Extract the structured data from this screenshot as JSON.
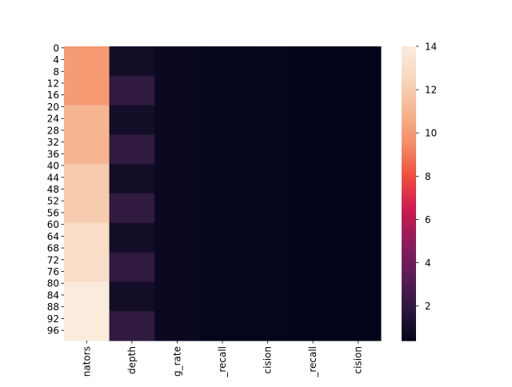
{
  "chart_data": {
    "type": "heatmap",
    "title": "",
    "xlabel": "",
    "ylabel": "",
    "columns": [
      "nators",
      "depth",
      "g_rate",
      "_recall",
      "cision",
      "_recall",
      "cision"
    ],
    "row_tick_labels": [
      "0",
      "4",
      "8",
      "12",
      "16",
      "20",
      "24",
      "28",
      "32",
      "36",
      "40",
      "44",
      "48",
      "52",
      "56",
      "60",
      "64",
      "68",
      "72",
      "76",
      "80",
      "84",
      "88",
      "92",
      "96"
    ],
    "n_rows": 100,
    "row_blocks": [
      {
        "rows": [
          0,
          9
        ],
        "values": [
          10,
          1,
          0.7,
          0.45,
          0.45,
          0.4,
          0.4
        ]
      },
      {
        "rows": [
          10,
          19
        ],
        "values": [
          10,
          2,
          0.7,
          0.45,
          0.45,
          0.4,
          0.4
        ]
      },
      {
        "rows": [
          20,
          29
        ],
        "values": [
          11,
          1,
          0.7,
          0.45,
          0.45,
          0.4,
          0.4
        ]
      },
      {
        "rows": [
          30,
          39
        ],
        "values": [
          11,
          2,
          0.7,
          0.45,
          0.45,
          0.4,
          0.4
        ]
      },
      {
        "rows": [
          40,
          49
        ],
        "values": [
          12,
          1,
          0.7,
          0.45,
          0.45,
          0.4,
          0.4
        ]
      },
      {
        "rows": [
          50,
          59
        ],
        "values": [
          12,
          2,
          0.7,
          0.45,
          0.45,
          0.4,
          0.4
        ]
      },
      {
        "rows": [
          60,
          69
        ],
        "values": [
          13,
          1,
          0.7,
          0.45,
          0.45,
          0.4,
          0.4
        ]
      },
      {
        "rows": [
          70,
          79
        ],
        "values": [
          13,
          2,
          0.7,
          0.45,
          0.45,
          0.4,
          0.4
        ]
      },
      {
        "rows": [
          80,
          89
        ],
        "values": [
          14,
          1,
          0.7,
          0.45,
          0.45,
          0.4,
          0.4
        ]
      },
      {
        "rows": [
          90,
          99
        ],
        "values": [
          14,
          2,
          0.7,
          0.45,
          0.45,
          0.4,
          0.4
        ]
      }
    ],
    "colorbar": {
      "vmin": 0.4,
      "vmax": 14,
      "ticks": [
        "2",
        "4",
        "6",
        "8",
        "10",
        "12",
        "14"
      ],
      "colormap": "rocket",
      "colormap_stops": [
        "#03051a",
        "#2d1a3e",
        "#5d1d57",
        "#8e1d5b",
        "#cb1b4f",
        "#ee4c3e",
        "#f58c64",
        "#f6b48f",
        "#f7d7bd",
        "#faebdd"
      ]
    },
    "grid": false,
    "legend": "colorbar-right"
  }
}
